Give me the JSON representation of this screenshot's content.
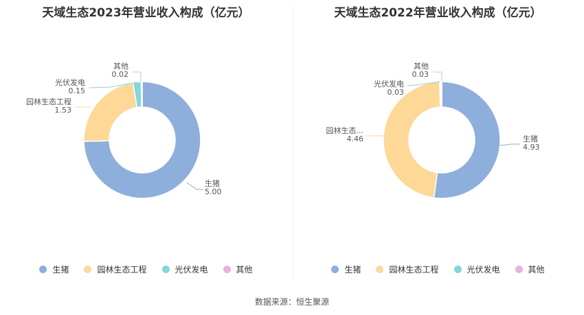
{
  "colors": {
    "生猪": "#8eaedb",
    "园林生态工程": "#fdd897",
    "光伏发电": "#86d5d9",
    "其他": "#e8b3dc"
  },
  "source": "数据来源：恒生聚源",
  "chart_data": [
    {
      "type": "pie",
      "title": "天域生态2023年营业收入构成（亿元）",
      "legend": [
        "生猪",
        "园林生态工程",
        "光伏发电",
        "其他"
      ],
      "slices": [
        {
          "name": "生猪",
          "value": 5.0,
          "label": "生猪",
          "value_text": "5.00"
        },
        {
          "name": "园林生态工程",
          "value": 1.53,
          "label": "园林生态工程",
          "value_text": "1.53"
        },
        {
          "name": "光伏发电",
          "value": 0.15,
          "label": "光伏发电",
          "value_text": "0.15"
        },
        {
          "name": "其他",
          "value": 0.02,
          "label": "其他",
          "value_text": "0.02"
        }
      ]
    },
    {
      "type": "pie",
      "title": "天域生态2022年营业收入构成（亿元）",
      "legend": [
        "生猪",
        "园林生态工程",
        "光伏发电",
        "其他"
      ],
      "slices": [
        {
          "name": "生猪",
          "value": 4.93,
          "label": "生猪",
          "value_text": "4.93"
        },
        {
          "name": "园林生态工程",
          "value": 4.46,
          "label": "园林生态...",
          "value_text": "4.46"
        },
        {
          "name": "光伏发电",
          "value": 0.03,
          "label": "光伏发电",
          "value_text": "0.03"
        },
        {
          "name": "其他",
          "value": 0.03,
          "label": "其他",
          "value_text": "0.03"
        }
      ]
    }
  ]
}
